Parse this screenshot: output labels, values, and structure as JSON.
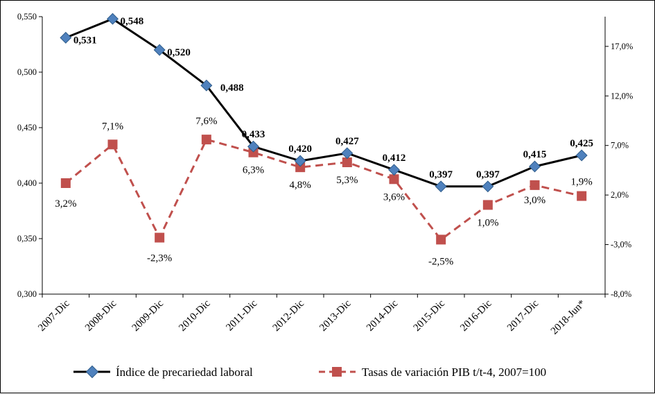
{
  "chart_data": {
    "type": "line",
    "categories": [
      "2007-Dic",
      "2008-Dic",
      "2009-Dic",
      "2010-Dic",
      "2011-Dic",
      "2012-Dic",
      "2013-Dic",
      "2014-Dic",
      "2015-Dic",
      "2016-Dic",
      "2017-Dic",
      "2018-Jun*"
    ],
    "y_left": {
      "ylim": [
        0.3,
        0.55
      ],
      "ticks": [
        "0,300",
        "0,350",
        "0,400",
        "0,450",
        "0,500",
        "0,550"
      ]
    },
    "y_right": {
      "ylim": [
        -8.0,
        20.0
      ],
      "ticks": [
        "-8,0%",
        "-3,0%",
        "2,0%",
        "7,0%",
        "12,0%",
        "17,0%"
      ]
    },
    "series": [
      {
        "name": "Índice de precariedad laboral",
        "axis": "left",
        "color": "#000000",
        "marker_color": "#4F81BD",
        "values": [
          0.531,
          0.548,
          0.52,
          0.488,
          0.433,
          0.42,
          0.427,
          0.412,
          0.397,
          0.397,
          0.415,
          0.425
        ],
        "labels": [
          "0,531",
          "0,548",
          "0,520",
          "0,488",
          "0,433",
          "0,420",
          "0,427",
          "0,412",
          "0,397",
          "0,397",
          "0,415",
          "0,425"
        ]
      },
      {
        "name": "Tasas de variación PIB t/t-4, 2007=100",
        "axis": "right",
        "color": "#C0504D",
        "values": [
          3.2,
          7.1,
          -2.3,
          7.6,
          6.3,
          4.8,
          5.3,
          3.6,
          -2.5,
          1.0,
          3.0,
          1.9
        ],
        "labels": [
          "3,2%",
          "7,1%",
          "-2,3%",
          "7,6%",
          "6,3%",
          "4,8%",
          "5,3%",
          "3,6%",
          "-2,5%",
          "1,0%",
          "3,0%",
          "1,9%"
        ]
      }
    ],
    "legend": {
      "position": "bottom",
      "entries": [
        "Índice de precariedad laboral",
        "Tasas de variación PIB t/t-4, 2007=100"
      ]
    },
    "grid": false
  }
}
